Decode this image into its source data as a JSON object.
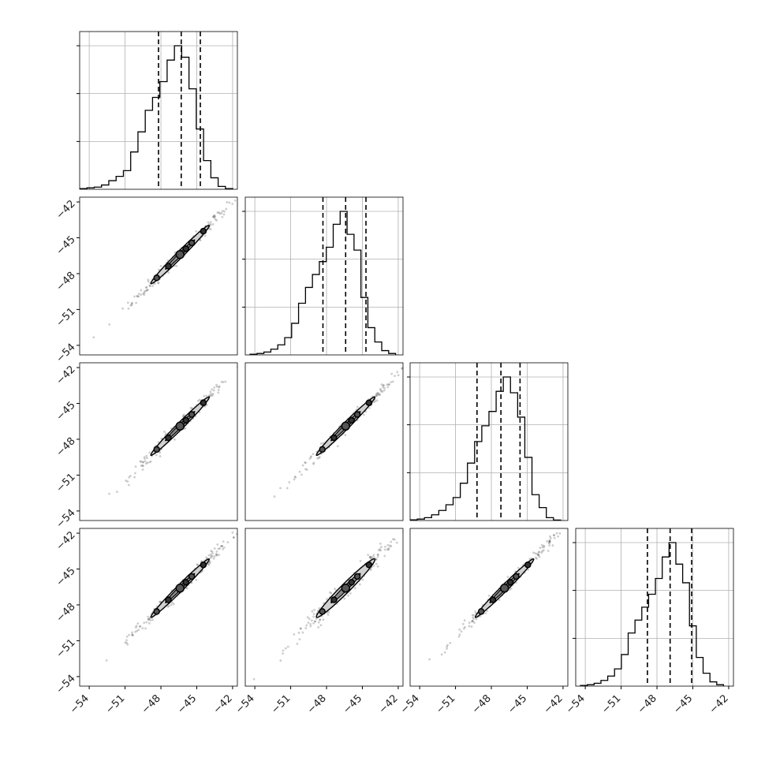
{
  "chart_data": {
    "type": "corner",
    "title": "",
    "n_params": 4,
    "axis_range": [
      -54.8,
      -41.6
    ],
    "ticks": [
      -54,
      -51,
      -48,
      -45,
      -42
    ],
    "grid": true,
    "colors": {
      "line": "#000000",
      "grid": "#b0b0b0",
      "points": "#3a3a3a",
      "fill": "#d0d0d0"
    },
    "diagonal": [
      {
        "name": "",
        "hist_edges": [
          -54.8,
          -54.19,
          -53.58,
          -52.97,
          -52.36,
          -51.75,
          -51.14,
          -50.53,
          -49.92,
          -49.31,
          -48.7,
          -48.09,
          -47.48,
          -46.87,
          -46.26,
          -45.65,
          -45.04,
          -44.43,
          -43.82,
          -43.21,
          -42.6,
          -41.99
        ],
        "hist_counts": [
          0.5,
          1.0,
          1.5,
          3,
          6,
          9,
          13,
          26,
          40,
          55,
          64,
          75,
          90,
          100,
          92,
          70,
          42,
          20,
          8,
          2,
          0.5
        ],
        "quantiles": [
          -48.2,
          -46.3,
          -44.7
        ]
      },
      {
        "name": "",
        "hist_edges": [
          -54.4,
          -53.82,
          -53.24,
          -52.66,
          -52.08,
          -51.5,
          -50.92,
          -50.34,
          -49.76,
          -49.18,
          -48.6,
          -48.02,
          -47.44,
          -46.86,
          -46.28,
          -45.7,
          -45.12,
          -44.54,
          -43.96,
          -43.38,
          -42.8,
          -42.22
        ],
        "hist_counts": [
          0.5,
          1.0,
          2,
          4,
          7,
          12,
          22,
          36,
          47,
          56,
          65,
          75,
          91,
          100,
          84,
          73,
          40,
          19,
          9,
          3,
          1
        ],
        "quantiles": [
          -48.3,
          -46.4,
          -44.7
        ]
      },
      {
        "name": "",
        "hist_edges": [
          -54.8,
          -54.2,
          -53.6,
          -53.0,
          -52.4,
          -51.8,
          -51.2,
          -50.6,
          -50.0,
          -49.4,
          -48.8,
          -48.2,
          -47.6,
          -47.0,
          -46.4,
          -45.8,
          -45.2,
          -44.6,
          -44.0,
          -43.4,
          -42.8,
          -42.2
        ],
        "hist_counts": [
          0.5,
          1,
          2,
          4,
          7,
          11,
          16,
          26,
          40,
          55,
          66,
          76,
          90,
          100,
          89,
          72,
          44,
          18,
          9,
          2,
          0.3
        ],
        "quantiles": [
          -49.2,
          -47.2,
          -45.6
        ]
      },
      {
        "name": "",
        "hist_edges": [
          -54.4,
          -53.83,
          -53.26,
          -52.69,
          -52.12,
          -51.55,
          -50.98,
          -50.41,
          -49.84,
          -49.27,
          -48.7,
          -48.13,
          -47.56,
          -46.99,
          -46.42,
          -45.85,
          -45.28,
          -44.71,
          -44.14,
          -43.57,
          -43.0,
          -42.43
        ],
        "hist_counts": [
          0.5,
          1.0,
          2,
          4,
          7,
          12,
          22,
          37,
          46,
          55,
          64,
          75,
          90,
          100,
          85,
          72,
          42,
          20,
          9,
          3,
          1
        ],
        "quantiles": [
          -48.8,
          -46.9,
          -45.1
        ]
      }
    ],
    "pairs": [
      {
        "row": 1,
        "col": 0,
        "center": [
          -46.4,
          -46.4
        ],
        "sd_major": 2.3,
        "sd_minor": 0.18
      },
      {
        "row": 2,
        "col": 0,
        "center": [
          -46.4,
          -46.9
        ],
        "sd_major": 2.3,
        "sd_minor": 0.18
      },
      {
        "row": 2,
        "col": 1,
        "center": [
          -46.4,
          -46.9
        ],
        "sd_major": 2.3,
        "sd_minor": 0.18
      },
      {
        "row": 3,
        "col": 0,
        "center": [
          -46.4,
          -46.6
        ],
        "sd_major": 2.3,
        "sd_minor": 0.18
      },
      {
        "row": 3,
        "col": 1,
        "center": [
          -46.4,
          -46.6
        ],
        "sd_major": 2.3,
        "sd_minor": 0.25
      },
      {
        "row": 3,
        "col": 2,
        "center": [
          -46.9,
          -46.6
        ],
        "sd_major": 2.3,
        "sd_minor": 0.18
      }
    ]
  }
}
